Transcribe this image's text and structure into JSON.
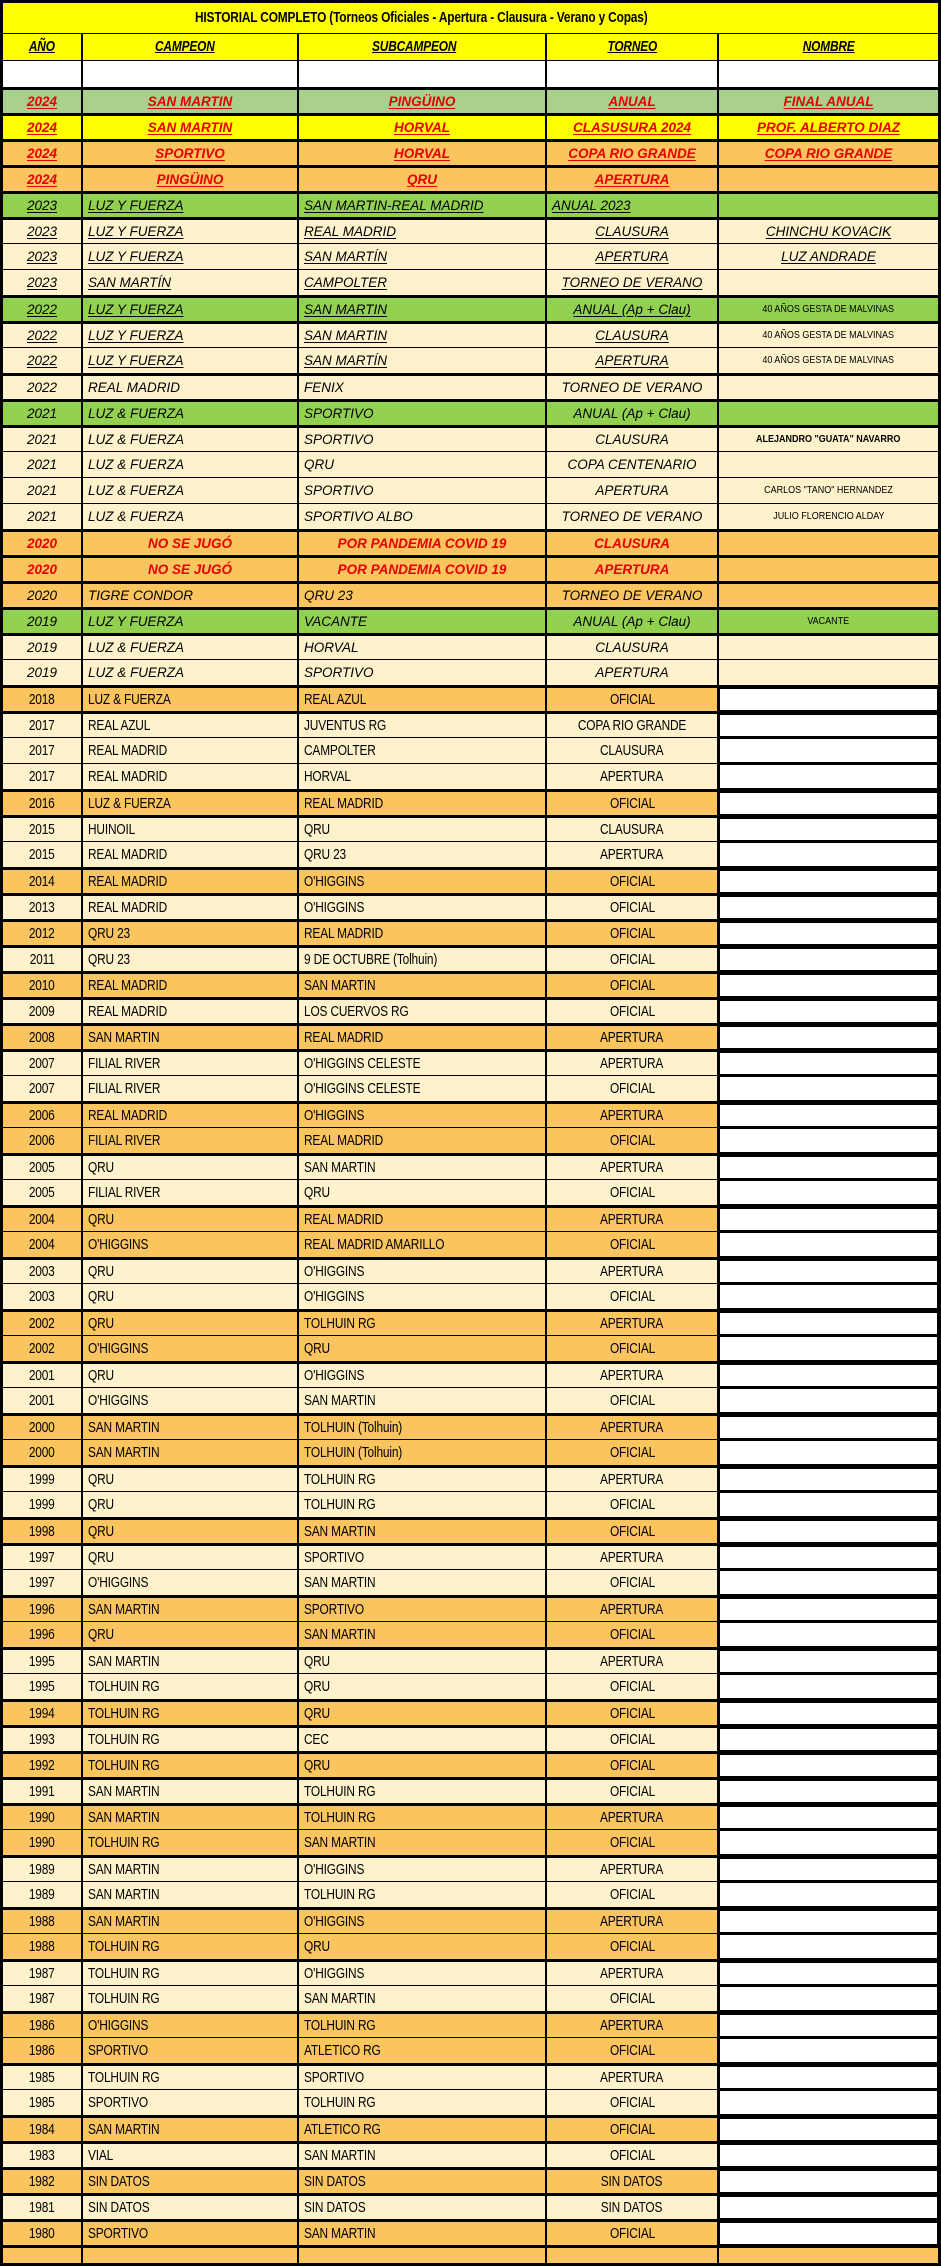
{
  "title": "HISTORIAL COMPLETO (Torneos Oficiales - Apertura - Clausura - Verano y Copas)",
  "columns": [
    {
      "key": "ano",
      "label": "AÑO"
    },
    {
      "key": "campeon",
      "label": "CAMPEON"
    },
    {
      "key": "subcampeon",
      "label": "SUBCAMPEON"
    },
    {
      "key": "torneo",
      "label": "TORNEO"
    },
    {
      "key": "nombre",
      "label": "NOMBRE"
    }
  ],
  "colors": {
    "header_bg": "#FFFF00",
    "row_cream": "#FDF2CB",
    "row_orange": "#FAC45F",
    "row_green": "#92D050",
    "row_muted_green": "#A9D08E",
    "row_yellow": "#FFFF00",
    "nombre_white": "#FFFFFF",
    "red_text": "#E60000",
    "black_text": "#000000",
    "border": "#000000"
  },
  "row_fields": [
    "year",
    "campeon",
    "subcampeon",
    "torneo",
    "nombre",
    "bg",
    "style",
    "thick_top"
  ],
  "rows": [
    [
      "2024",
      "SAN MARTIN",
      "PINGÜINO",
      "ANUAL",
      "FINAL ANUAL",
      "mgreen",
      "it red u ctr",
      1
    ],
    [
      "2024",
      "SAN MARTIN",
      "HORVAL",
      "CLASUSURA 2024",
      "PROF. ALBERTO DIAZ",
      "yellow",
      "it red u ctr",
      1
    ],
    [
      "2024",
      "SPORTIVO",
      "HORVAL",
      "COPA RIO GRANDE",
      "COPA RIO GRANDE",
      "orange",
      "it red u ctr",
      1
    ],
    [
      "2024",
      "PINGÜINO",
      "QRU",
      "APERTURA",
      "",
      "orange",
      "it red u ctr",
      1
    ],
    [
      "2023",
      "LUZ Y FUERZA",
      "SAN MARTIN-REAL MADRID",
      "ANUAL 2023",
      "",
      "green",
      "it u tleft",
      1
    ],
    [
      "2023",
      "LUZ Y FUERZA",
      "REAL MADRID",
      "CLAUSURA",
      "CHINCHU KOVACIK",
      "cream",
      "it u",
      1
    ],
    [
      "2023",
      "LUZ Y FUERZA",
      "SAN MARTÍN",
      "APERTURA",
      "LUZ ANDRADE",
      "cream",
      "it u",
      0
    ],
    [
      "2023",
      "SAN MARTÍN",
      "CAMPOLTER",
      "TORNEO DE VERANO",
      "",
      "cream",
      "it u",
      0
    ],
    [
      "2022",
      "LUZ Y FUERZA",
      "SAN MARTIN",
      "ANUAL (Ap + Clau)",
      "40 AÑOS GESTA DE MALVINAS",
      "green",
      "it u nsm",
      1
    ],
    [
      "2022",
      "LUZ Y FUERZA",
      "SAN MARTIN",
      "CLAUSURA",
      "40 AÑOS GESTA DE MALVINAS",
      "cream",
      "it u nsm",
      1
    ],
    [
      "2022",
      "LUZ Y FUERZA",
      "SAN MARTÍN",
      "APERTURA",
      "40 AÑOS GESTA DE MALVINAS",
      "cream",
      "it u nsm",
      0
    ],
    [
      "2022",
      "REAL MADRID",
      "FENIX",
      "TORNEO DE VERANO",
      "",
      "cream",
      "it",
      1
    ],
    [
      "2021",
      "LUZ & FUERZA",
      "SPORTIVO",
      "ANUAL (Ap + Clau)",
      "",
      "green",
      "it",
      1
    ],
    [
      "2021",
      "LUZ & FUERZA",
      "SPORTIVO",
      "CLAUSURA",
      "ALEJANDRO \"GUATA\" NAVARRO",
      "cream",
      "it nsm nbold",
      1
    ],
    [
      "2021",
      "LUZ & FUERZA",
      "QRU",
      "COPA CENTENARIO",
      "",
      "cream",
      "it",
      0
    ],
    [
      "2021",
      "LUZ & FUERZA",
      "SPORTIVO",
      "APERTURA",
      "CARLOS \"TANO\" HERNANDEZ",
      "cream",
      "it nsm",
      0
    ],
    [
      "2021",
      "LUZ & FUERZA",
      "SPORTIVO ALBO",
      "TORNEO DE VERANO",
      "JULIO FLORENCIO ALDAY",
      "cream",
      "it nsm",
      0
    ],
    [
      "2020",
      "NO SE JUGÓ",
      "POR PANDEMIA COVID 19",
      "CLAUSURA",
      "",
      "orange",
      "it red ctr",
      1
    ],
    [
      "2020",
      "NO SE JUGÓ",
      "POR PANDEMIA COVID 19",
      "APERTURA",
      "",
      "orange",
      "it red ctr",
      1
    ],
    [
      "2020",
      "TIGRE CONDOR",
      "QRU 23",
      "TORNEO DE VERANO",
      "",
      "orange",
      "it",
      1
    ],
    [
      "2019",
      "LUZ Y FUERZA",
      "VACANTE",
      "ANUAL (Ap + Clau)",
      "VACANTE",
      "green",
      "it nsm",
      1
    ],
    [
      "2019",
      "LUZ & FUERZA",
      "HORVAL",
      "CLAUSURA",
      "",
      "cream",
      "it",
      1
    ],
    [
      "2019",
      "LUZ & FUERZA",
      "SPORTIVO",
      "APERTURA",
      "",
      "cream",
      "it",
      0
    ],
    [
      "2018",
      "LUZ & FUERZA",
      "REAL AZUL",
      "OFICIAL",
      "",
      "orange",
      "nwhite",
      1
    ],
    [
      "2017",
      "REAL AZUL",
      "JUVENTUS RG",
      "COPA RIO GRANDE",
      "",
      "cream",
      "nwhite",
      1
    ],
    [
      "2017",
      "REAL MADRID",
      "CAMPOLTER",
      "CLAUSURA",
      "",
      "cream",
      "nwhite",
      0
    ],
    [
      "2017",
      "REAL MADRID",
      "HORVAL",
      "APERTURA",
      "",
      "cream",
      "nwhite",
      0
    ],
    [
      "2016",
      "LUZ & FUERZA",
      "REAL MADRID",
      "OFICIAL",
      "",
      "orange",
      "nwhite",
      1
    ],
    [
      "2015",
      "HUINOIL",
      "QRU",
      "CLAUSURA",
      "",
      "cream",
      "nwhite",
      1
    ],
    [
      "2015",
      "REAL MADRID",
      "QRU 23",
      "APERTURA",
      "",
      "cream",
      "nwhite",
      0
    ],
    [
      "2014",
      "REAL MADRID",
      "O'HIGGINS",
      "OFICIAL",
      "",
      "orange",
      "nwhite",
      1
    ],
    [
      "2013",
      "REAL MADRID",
      "O'HIGGINS",
      "OFICIAL",
      "",
      "cream",
      "nwhite",
      1
    ],
    [
      "2012",
      "QRU 23",
      "REAL MADRID",
      "OFICIAL",
      "",
      "orange",
      "nwhite",
      1
    ],
    [
      "2011",
      "QRU 23",
      "9 DE OCTUBRE (Tolhuin)",
      "OFICIAL",
      "",
      "cream",
      "nwhite",
      1
    ],
    [
      "2010",
      "REAL MADRID",
      "SAN MARTIN",
      "OFICIAL",
      "",
      "orange",
      "nwhite",
      1
    ],
    [
      "2009",
      "REAL MADRID",
      "LOS CUERVOS RG",
      "OFICIAL",
      "",
      "cream",
      "nwhite",
      1
    ],
    [
      "2008",
      "SAN MARTIN",
      "REAL MADRID",
      "APERTURA",
      "",
      "orange",
      "nwhite",
      1
    ],
    [
      "2007",
      "FILIAL RIVER",
      "O'HIGGINS CELESTE",
      "APERTURA",
      "",
      "cream",
      "nwhite",
      1
    ],
    [
      "2007",
      "FILIAL RIVER",
      "O'HIGGINS CELESTE",
      "OFICIAL",
      "",
      "cream",
      "nwhite",
      0
    ],
    [
      "2006",
      "REAL MADRID",
      "O'HIGGINS",
      "APERTURA",
      "",
      "orange",
      "nwhite",
      1
    ],
    [
      "2006",
      "FILIAL RIVER",
      "REAL MADRID",
      "OFICIAL",
      "",
      "orange",
      "nwhite",
      0
    ],
    [
      "2005",
      "QRU",
      "SAN MARTIN",
      "APERTURA",
      "",
      "cream",
      "nwhite",
      1
    ],
    [
      "2005",
      "FILIAL RIVER",
      "QRU",
      "OFICIAL",
      "",
      "cream",
      "nwhite",
      0
    ],
    [
      "2004",
      "QRU",
      "REAL MADRID",
      "APERTURA",
      "",
      "orange",
      "nwhite",
      1
    ],
    [
      "2004",
      "O'HIGGINS",
      "REAL MADRID AMARILLO",
      "OFICIAL",
      "",
      "orange",
      "nwhite",
      0
    ],
    [
      "2003",
      "QRU",
      "O'HIGGINS",
      "APERTURA",
      "",
      "cream",
      "nwhite",
      1
    ],
    [
      "2003",
      "QRU",
      "O'HIGGINS",
      "OFICIAL",
      "",
      "cream",
      "nwhite",
      0
    ],
    [
      "2002",
      "QRU",
      "TOLHUIN RG",
      "APERTURA",
      "",
      "orange",
      "nwhite",
      1
    ],
    [
      "2002",
      "O'HIGGINS",
      "QRU",
      "OFICIAL",
      "",
      "orange",
      "nwhite",
      0
    ],
    [
      "2001",
      "QRU",
      "O'HIGGINS",
      "APERTURA",
      "",
      "cream",
      "nwhite",
      1
    ],
    [
      "2001",
      "O'HIGGINS",
      "SAN MARTIN",
      "OFICIAL",
      "",
      "cream",
      "nwhite",
      0
    ],
    [
      "2000",
      "SAN MARTIN",
      "TOLHUIN (Tolhuin)",
      "APERTURA",
      "",
      "orange",
      "nwhite",
      1
    ],
    [
      "2000",
      "SAN MARTIN",
      "TOLHUIN (Tolhuin)",
      "OFICIAL",
      "",
      "orange",
      "nwhite",
      0
    ],
    [
      "1999",
      "QRU",
      "TOLHUIN RG",
      "APERTURA",
      "",
      "cream",
      "nwhite",
      1
    ],
    [
      "1999",
      "QRU",
      "TOLHUIN RG",
      "OFICIAL",
      "",
      "cream",
      "nwhite",
      0
    ],
    [
      "1998",
      "QRU",
      "SAN MARTIN",
      "OFICIAL",
      "",
      "orange",
      "nwhite",
      1
    ],
    [
      "1997",
      "QRU",
      "SPORTIVO",
      "APERTURA",
      "",
      "cream",
      "nwhite",
      1
    ],
    [
      "1997",
      "O'HIGGINS",
      "SAN MARTIN",
      "OFICIAL",
      "",
      "cream",
      "nwhite",
      0
    ],
    [
      "1996",
      "SAN MARTIN",
      "SPORTIVO",
      "APERTURA",
      "",
      "orange",
      "nwhite",
      1
    ],
    [
      "1996",
      "QRU",
      "SAN MARTIN",
      "OFICIAL",
      "",
      "orange",
      "nwhite",
      0
    ],
    [
      "1995",
      "SAN MARTIN",
      "QRU",
      "APERTURA",
      "",
      "cream",
      "nwhite",
      1
    ],
    [
      "1995",
      "TOLHUIN RG",
      "QRU",
      "OFICIAL",
      "",
      "cream",
      "nwhite",
      0
    ],
    [
      "1994",
      "TOLHUIN RG",
      "QRU",
      "OFICIAL",
      "",
      "orange",
      "nwhite",
      1
    ],
    [
      "1993",
      "TOLHUIN RG",
      "CEC",
      "OFICIAL",
      "",
      "cream",
      "nwhite",
      1
    ],
    [
      "1992",
      "TOLHUIN RG",
      "QRU",
      "OFICIAL",
      "",
      "orange",
      "nwhite",
      1
    ],
    [
      "1991",
      "SAN MARTIN",
      "TOLHUIN RG",
      "OFICIAL",
      "",
      "cream",
      "nwhite",
      1
    ],
    [
      "1990",
      "SAN MARTIN",
      "TOLHUIN RG",
      "APERTURA",
      "",
      "orange",
      "nwhite",
      1
    ],
    [
      "1990",
      "TOLHUIN RG",
      "SAN MARTIN",
      "OFICIAL",
      "",
      "orange",
      "nwhite",
      0
    ],
    [
      "1989",
      "SAN MARTIN",
      "O'HIGGINS",
      "APERTURA",
      "",
      "cream",
      "nwhite",
      1
    ],
    [
      "1989",
      "SAN MARTIN",
      "TOLHUIN RG",
      "OFICIAL",
      "",
      "cream",
      "nwhite",
      0
    ],
    [
      "1988",
      "SAN MARTIN",
      "O'HIGGINS",
      "APERTURA",
      "",
      "orange",
      "nwhite",
      1
    ],
    [
      "1988",
      "TOLHUIN RG",
      "QRU",
      "OFICIAL",
      "",
      "orange",
      "nwhite",
      0
    ],
    [
      "1987",
      "TOLHUIN RG",
      "O'HIGGINS",
      "APERTURA",
      "",
      "cream",
      "nwhite",
      1
    ],
    [
      "1987",
      "TOLHUIN RG",
      "SAN MARTIN",
      "OFICIAL",
      "",
      "cream",
      "nwhite",
      0
    ],
    [
      "1986",
      "O'HIGGINS",
      "TOLHUIN RG",
      "APERTURA",
      "",
      "orange",
      "nwhite",
      1
    ],
    [
      "1986",
      "SPORTIVO",
      "ATLETICO RG",
      "OFICIAL",
      "",
      "orange",
      "nwhite",
      0
    ],
    [
      "1985",
      "TOLHUIN RG",
      "SPORTIVO",
      "APERTURA",
      "",
      "cream",
      "nwhite",
      1
    ],
    [
      "1985",
      "SPORTIVO",
      "TOLHUIN RG",
      "OFICIAL",
      "",
      "cream",
      "nwhite",
      0
    ],
    [
      "1984",
      "SAN MARTIN",
      "ATLETICO RG",
      "OFICIAL",
      "",
      "orange",
      "nwhite",
      1
    ],
    [
      "1983",
      "VIAL",
      "SAN MARTIN",
      "OFICIAL",
      "",
      "cream",
      "nwhite",
      1
    ],
    [
      "1982",
      "SIN DATOS",
      "SIN DATOS",
      "SIN DATOS",
      "",
      "orange",
      "nwhite",
      1
    ],
    [
      "1981",
      "SIN DATOS",
      "SIN DATOS",
      "SIN DATOS",
      "",
      "cream",
      "nwhite",
      1
    ],
    [
      "1980",
      "SPORTIVO",
      "SAN MARTIN",
      "OFICIAL",
      "",
      "orange",
      "nwhite",
      1
    ],
    [
      "",
      "",
      "",
      "",
      "",
      "orange",
      "",
      1
    ]
  ]
}
